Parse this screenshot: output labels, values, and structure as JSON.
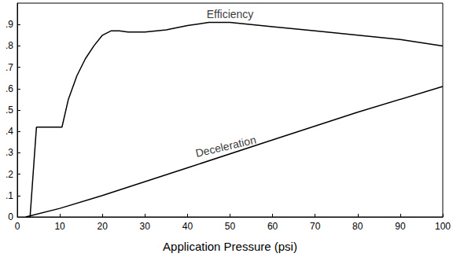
{
  "chart_data": {
    "type": "line",
    "x_label": "Application Pressure (psi)",
    "xlim": [
      0,
      100
    ],
    "xticks": [
      0,
      10,
      20,
      30,
      40,
      50,
      60,
      70,
      80,
      90,
      100
    ],
    "ylim": [
      0,
      1
    ],
    "yticks": [
      0,
      {
        "value": 0.1,
        "label": ".1"
      },
      {
        "value": 0.2,
        "label": ".2"
      },
      {
        "value": 0.3,
        "label": ".3"
      },
      {
        "value": 0.4,
        "label": ".4"
      },
      {
        "value": 0.5,
        "label": ".5"
      },
      {
        "value": 0.6,
        "label": ".6"
      },
      {
        "value": 0.7,
        "label": ".7"
      },
      {
        "value": 0.8,
        "label": ".8"
      },
      {
        "value": 0.9,
        "label": ".9"
      }
    ],
    "grid": false,
    "series": [
      {
        "name": "Efficiency",
        "color": "#000000",
        "line_style": "solid",
        "x": [
          3,
          4.5,
          10.5,
          12,
          14,
          16,
          18,
          20,
          22,
          24,
          26,
          30,
          35,
          40,
          45,
          50,
          55,
          60,
          70,
          80,
          90,
          100
        ],
        "values": [
          0,
          0.42,
          0.42,
          0.55,
          0.66,
          0.74,
          0.8,
          0.85,
          0.87,
          0.87,
          0.865,
          0.865,
          0.875,
          0.895,
          0.91,
          0.91,
          0.9,
          0.89,
          0.87,
          0.85,
          0.83,
          0.8
        ]
      },
      {
        "name": "Deceleration",
        "color": "#000000",
        "line_style": "solid",
        "x": [
          2,
          10,
          20,
          40,
          60,
          80,
          100
        ],
        "values": [
          0,
          0.04,
          0.1,
          0.23,
          0.36,
          0.49,
          0.61
        ]
      }
    ],
    "annotations": [
      {
        "text": "Efficiency",
        "x": 50,
        "y": 0.95
      },
      {
        "text": "Deceleration",
        "x": 49,
        "y": 0.33
      }
    ]
  }
}
